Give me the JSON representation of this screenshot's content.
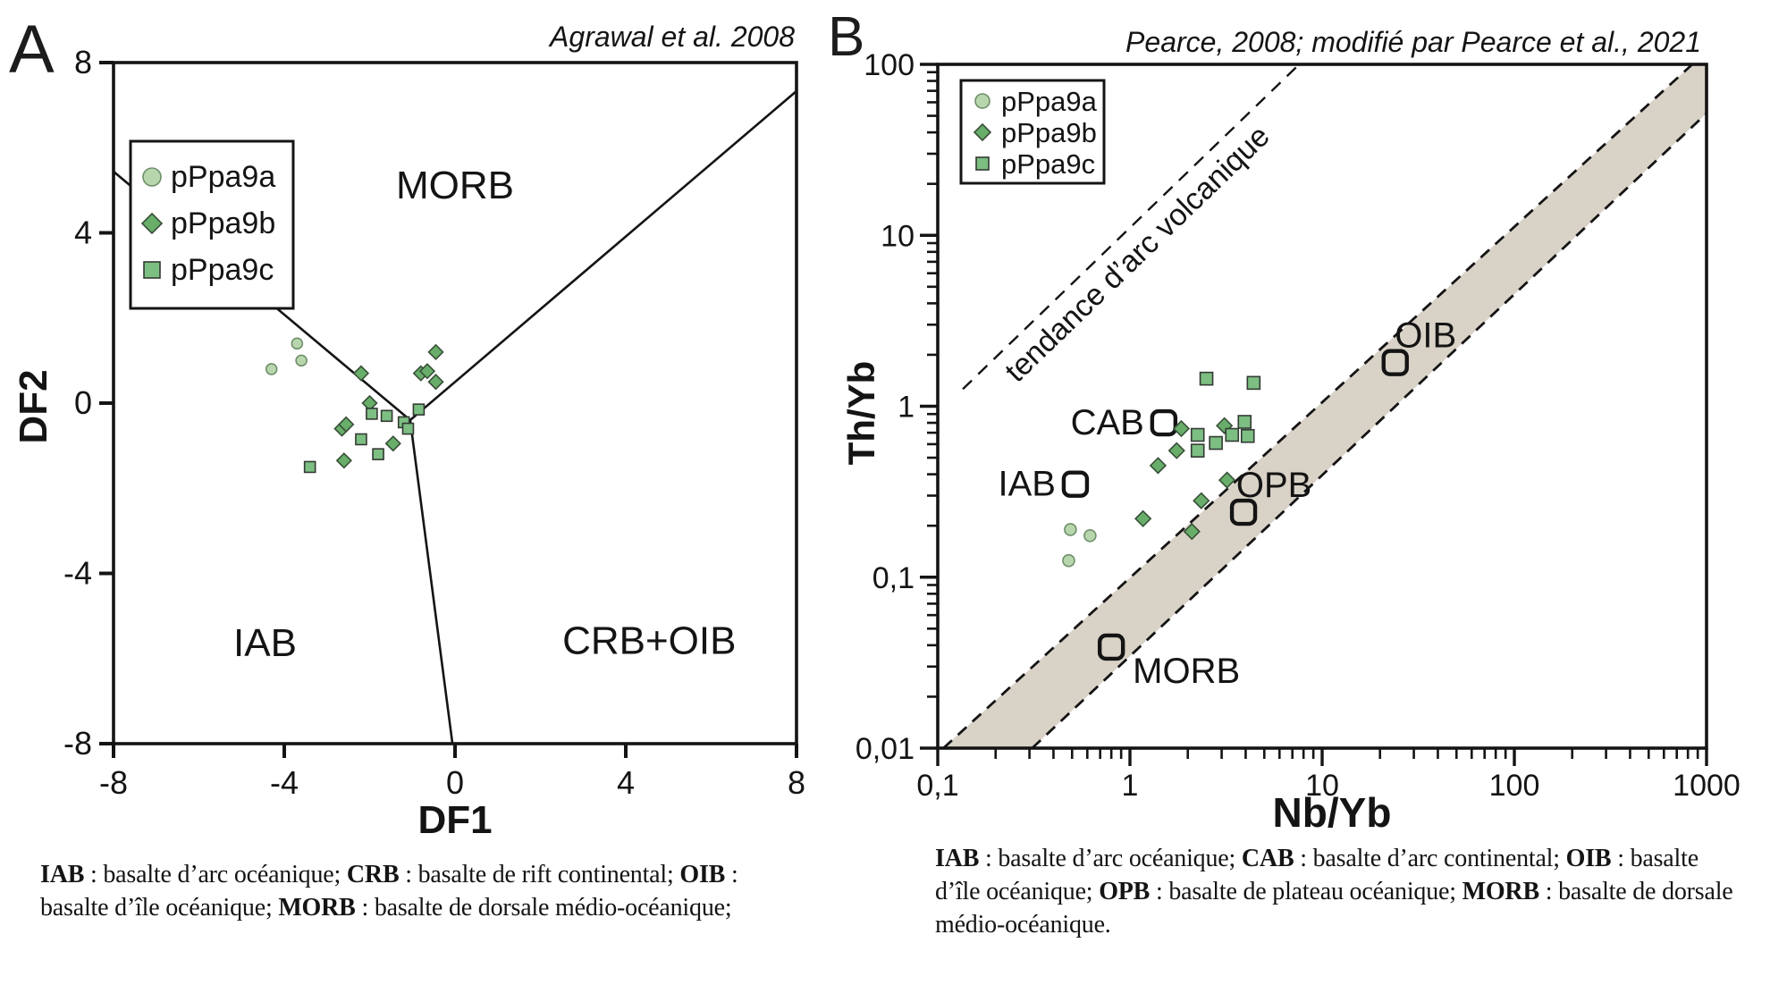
{
  "panel_a": {
    "letter": "A",
    "caption_lines": [
      [
        {
          "t": "IAB",
          "b": true
        },
        {
          "t": " : basalte d’arc océanique; "
        },
        {
          "t": "CRB",
          "b": true
        },
        {
          "t": " : basalte de rift continental; "
        },
        {
          "t": "OIB",
          "b": true
        },
        {
          "t": " :"
        }
      ],
      [
        {
          "t": "basalte d’île océanique; "
        },
        {
          "t": "MORB",
          "b": true
        },
        {
          "t": " : basalte de dorsale médio-océanique;"
        }
      ]
    ]
  },
  "panel_b": {
    "letter": "B",
    "caption_lines": [
      [
        {
          "t": "IAB",
          "b": true
        },
        {
          "t": " : basalte d’arc océanique; "
        },
        {
          "t": "CAB",
          "b": true
        },
        {
          "t": " : basalte d’arc continental; "
        },
        {
          "t": "OIB",
          "b": true
        },
        {
          "t": " : basalte"
        }
      ],
      [
        {
          "t": "d’île océanique; "
        },
        {
          "t": "OPB",
          "b": true
        },
        {
          "t": " : basalte de plateau océanique; "
        },
        {
          "t": "MORB",
          "b": true
        },
        {
          "t": " : basalte de dorsale"
        }
      ],
      [
        {
          "t": "médio-océanique."
        }
      ]
    ]
  },
  "colors": {
    "pPpa9a": {
      "fill": "#b7d6ae",
      "stroke": "#6f8f6a"
    },
    "pPpa9b": {
      "fill": "#68ae6a",
      "stroke": "#384f38"
    },
    "pPpa9c": {
      "fill": "#7dbe83",
      "stroke": "#323a32"
    },
    "band_fill": "#d9d2c7",
    "line": "#141414"
  },
  "chart_data": [
    {
      "panel": "A",
      "type": "scatter",
      "scale": "linear",
      "title": "Agrawal et al. 2008",
      "xlabel": "DF1",
      "ylabel": "DF2",
      "xlim": [
        -8,
        8
      ],
      "ylim": [
        -8,
        8
      ],
      "x_ticks": [
        {
          "v": -8,
          "label": "-8"
        },
        {
          "v": -4,
          "label": "-4"
        },
        {
          "v": 0,
          "label": "0"
        },
        {
          "v": 4,
          "label": "4"
        },
        {
          "v": 8,
          "label": "8"
        }
      ],
      "y_ticks": [
        {
          "v": 8,
          "label": "8"
        },
        {
          "v": 4,
          "label": "4"
        },
        {
          "v": 0,
          "label": "0"
        },
        {
          "v": -4,
          "label": "-4"
        },
        {
          "v": -8,
          "label": "-8"
        }
      ],
      "legend": [
        "pPpa9a",
        "pPpa9b",
        "pPpa9c"
      ],
      "series": [
        {
          "name": "pPpa9a",
          "marker": "circle",
          "points": [
            [
              -3.7,
              1.4
            ],
            [
              -3.6,
              1.0
            ],
            [
              -4.3,
              0.8
            ]
          ]
        },
        {
          "name": "pPpa9b",
          "marker": "diamond",
          "points": [
            [
              -2.2,
              0.7
            ],
            [
              -0.8,
              0.7
            ],
            [
              -0.65,
              0.75
            ],
            [
              -0.45,
              1.2
            ],
            [
              -0.45,
              0.5
            ],
            [
              -2.0,
              0.0
            ],
            [
              -2.65,
              -0.6
            ],
            [
              -2.55,
              -0.5
            ],
            [
              -1.45,
              -0.95
            ],
            [
              -2.6,
              -1.35
            ]
          ]
        },
        {
          "name": "pPpa9c",
          "marker": "square",
          "points": [
            [
              -1.95,
              -0.25
            ],
            [
              -1.6,
              -0.3
            ],
            [
              -1.2,
              -0.45
            ],
            [
              -1.1,
              -0.6
            ],
            [
              -0.85,
              -0.15
            ],
            [
              -2.2,
              -0.85
            ],
            [
              -1.8,
              -1.2
            ],
            [
              -3.4,
              -1.5
            ]
          ]
        }
      ],
      "boundary_lines": [
        [
          [
            -8,
            5.44
          ],
          [
            -1.05,
            -0.4
          ]
        ],
        [
          [
            -1.05,
            -0.4
          ],
          [
            8,
            7.33
          ]
        ],
        [
          [
            -1.05,
            -0.4
          ],
          [
            -0.06,
            -8
          ]
        ]
      ],
      "region_labels": [
        {
          "text": "MORB",
          "x": 0.0,
          "y": 5.1
        },
        {
          "text": "IAB",
          "x": -4.45,
          "y": -5.65
        },
        {
          "text": "CRB+OIB",
          "x": 4.55,
          "y": -5.6
        }
      ]
    },
    {
      "panel": "B",
      "type": "scatter",
      "scale": "log-log",
      "title": "Pearce, 2008; modifié par Pearce et al., 2021",
      "xlabel": "Nb/Yb",
      "ylabel": "Th/Yb",
      "xlim": [
        0.1,
        1000
      ],
      "ylim": [
        0.01,
        100
      ],
      "x_ticks": [
        {
          "v": 0.1,
          "label": "0,1"
        },
        {
          "v": 1,
          "label": "1"
        },
        {
          "v": 10,
          "label": "10"
        },
        {
          "v": 100,
          "label": "100"
        },
        {
          "v": 1000,
          "label": "1000"
        }
      ],
      "y_ticks": [
        {
          "v": 100,
          "label": "100"
        },
        {
          "v": 10,
          "label": "10"
        },
        {
          "v": 1,
          "label": "1"
        },
        {
          "v": 0.1,
          "label": "0,1"
        },
        {
          "v": 0.01,
          "label": "0,01"
        }
      ],
      "legend": [
        "pPpa9a",
        "pPpa9b",
        "pPpa9c"
      ],
      "series": [
        {
          "name": "pPpa9a",
          "marker": "circle",
          "points": [
            [
              0.49,
              0.19
            ],
            [
              0.62,
              0.175
            ],
            [
              0.48,
              0.125
            ]
          ]
        },
        {
          "name": "pPpa9b",
          "marker": "diamond",
          "points": [
            [
              1.85,
              0.74
            ],
            [
              3.1,
              0.77
            ],
            [
              1.75,
              0.55
            ],
            [
              1.4,
              0.45
            ],
            [
              3.2,
              0.37
            ],
            [
              2.35,
              0.28
            ],
            [
              1.17,
              0.22
            ],
            [
              2.1,
              0.185
            ]
          ]
        },
        {
          "name": "pPpa9c",
          "marker": "square",
          "points": [
            [
              2.5,
              1.45
            ],
            [
              4.4,
              1.37
            ],
            [
              2.25,
              0.68
            ],
            [
              3.4,
              0.68
            ],
            [
              3.95,
              0.81
            ],
            [
              4.1,
              0.67
            ],
            [
              2.8,
              0.61
            ],
            [
              2.25,
              0.55
            ]
          ]
        }
      ],
      "morb_oib_array": {
        "upper_line": [
          [
            0.107,
            0.01
          ],
          [
            843,
            100
          ]
        ],
        "lower_line": [
          [
            0.31,
            0.01
          ],
          [
            1000,
            51.7
          ]
        ]
      },
      "arc_trend": {
        "line": [
          [
            0.135,
            1.26
          ],
          [
            7.6,
            100
          ]
        ],
        "label": "tendance d’arc volcanique"
      },
      "reference_points": [
        {
          "label": "IAB",
          "x": 0.52,
          "y": 0.35,
          "label_pos": "left"
        },
        {
          "label": "CAB",
          "x": 1.5,
          "y": 0.8,
          "label_pos": "left"
        },
        {
          "label": "OPB",
          "x": 3.9,
          "y": 0.24,
          "label_pos": "above"
        },
        {
          "label": "OIB",
          "x": 24,
          "y": 1.8,
          "label_pos": "above"
        },
        {
          "label": "MORB",
          "x": 0.8,
          "y": 0.039,
          "label_pos": "below-right"
        }
      ]
    }
  ]
}
